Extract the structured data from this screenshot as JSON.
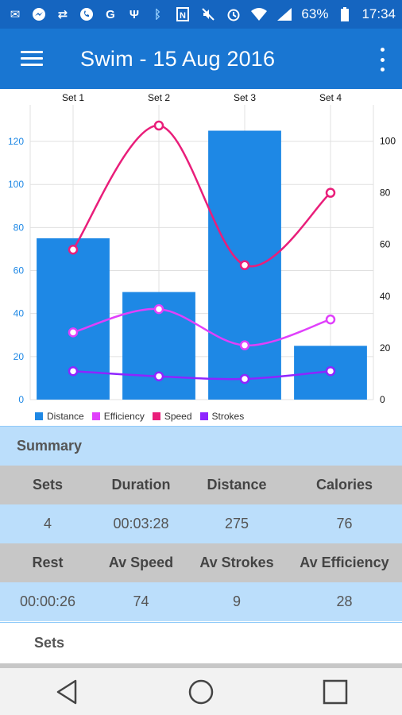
{
  "status_bar": {
    "left_icons": [
      "mail-icon",
      "messenger-icon",
      "sync-icon",
      "whatsapp-icon",
      "google-icon",
      "usb-icon"
    ],
    "right_icons": [
      "bluetooth-icon",
      "nfc-icon",
      "mute-icon",
      "alarm-icon",
      "wifi-icon",
      "signal-icon"
    ],
    "battery": "63%",
    "time": "17:34"
  },
  "app_bar": {
    "title": "Swim - 15 Aug 2016"
  },
  "chart_data": {
    "type": "bar",
    "categories": [
      "Set 1",
      "Set 2",
      "Set 3",
      "Set 4"
    ],
    "series": [
      {
        "name": "Distance",
        "type": "bar",
        "axis": "left",
        "values": [
          75,
          50,
          125,
          25
        ],
        "color": "#1e88e5"
      },
      {
        "name": "Efficiency",
        "type": "line",
        "axis": "right",
        "values": [
          26,
          35,
          21,
          31
        ],
        "color": "#e040fb"
      },
      {
        "name": "Speed",
        "type": "line",
        "axis": "right",
        "values": [
          58,
          106,
          52,
          80
        ],
        "color": "#e91e7a"
      },
      {
        "name": "Strokes",
        "type": "line",
        "axis": "right",
        "values": [
          11,
          9,
          8,
          11
        ],
        "color": "#8e24ff"
      }
    ],
    "y_left": {
      "ticks": [
        "0",
        "20",
        "40",
        "60",
        "80",
        "100",
        "120"
      ],
      "range": [
        0,
        137
      ]
    },
    "y_right": {
      "ticks": [
        "0",
        "20",
        "40",
        "60",
        "80",
        "100"
      ],
      "range": [
        0,
        114
      ]
    },
    "grid": true,
    "legend": "bottom-left",
    "legend_labels": [
      "Distance",
      "Efficiency",
      "Speed",
      "Strokes"
    ]
  },
  "summary": {
    "title": "Summary",
    "row1_headers": [
      "Sets",
      "Duration",
      "Distance",
      "Calories"
    ],
    "row1_values": [
      "4",
      "00:03:28",
      "275",
      "76"
    ],
    "row2_headers": [
      "Rest",
      "Av Speed",
      "Av Strokes",
      "Av Efficiency"
    ],
    "row2_values": [
      "00:00:26",
      "74",
      "9",
      "28"
    ]
  },
  "sets_section": {
    "title": "Sets"
  },
  "nav": {
    "back": "back-icon",
    "home": "home-icon",
    "recents": "recents-icon"
  }
}
